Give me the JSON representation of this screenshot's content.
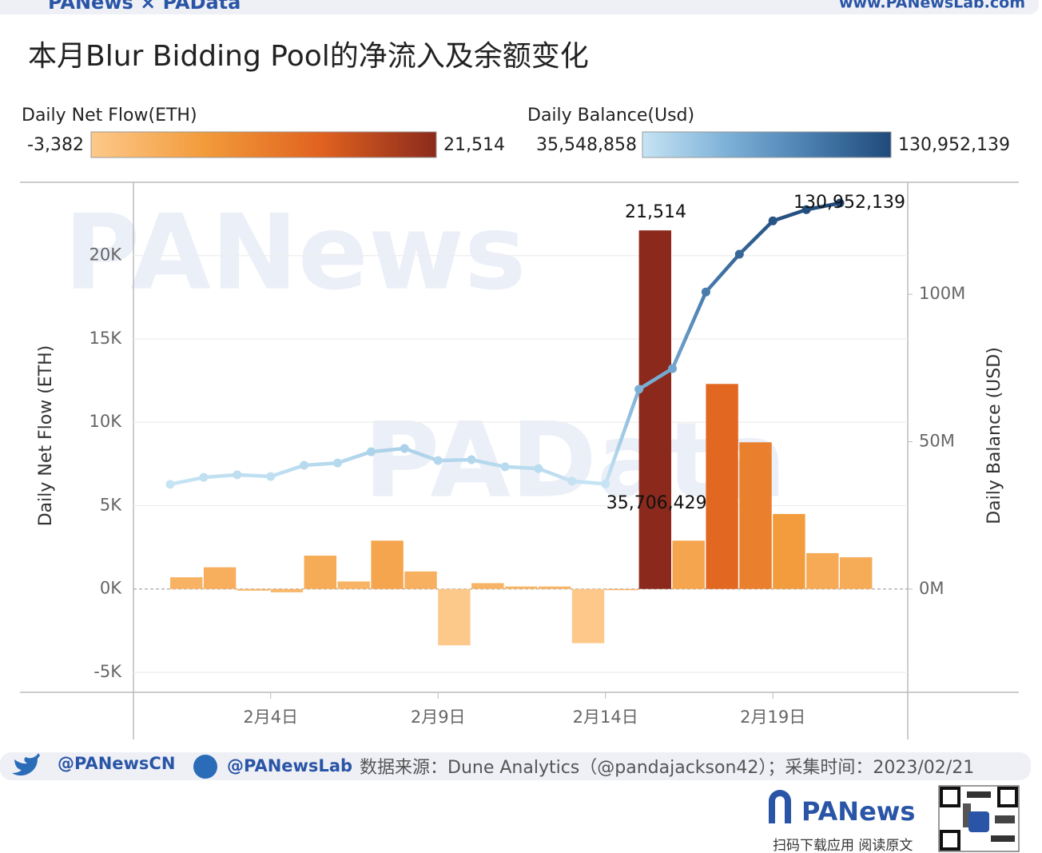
{
  "header": {
    "brand": "PANews × PAData",
    "url": "www.PANewsLab.com"
  },
  "watermarks": [
    "PANews",
    "PAData"
  ],
  "chart_data": {
    "type": "bar",
    "title": "本月Blur Bidding Pool的净流入及余额变化",
    "categories": [
      null,
      null,
      null,
      "2月4日",
      null,
      null,
      null,
      null,
      "2月9日",
      null,
      null,
      null,
      null,
      "2月14日",
      null,
      null,
      null,
      null,
      "2月19日",
      null,
      null
    ],
    "series": [
      {
        "name": "Daily Net Flow(ETH)",
        "type": "bar",
        "values": [
          700,
          1300,
          -100,
          -200,
          2000,
          450,
          2900,
          1050,
          -3382,
          350,
          150,
          150,
          -3250,
          -60,
          21514,
          2900,
          12300,
          8800,
          4500,
          2150,
          1900
        ],
        "value_labels": [
          null,
          null,
          null,
          null,
          null,
          null,
          null,
          null,
          null,
          null,
          null,
          null,
          null,
          null,
          "21,514",
          null,
          null,
          null,
          null,
          null,
          null
        ],
        "color_scale": {
          "colors": [
            "#fdc98a",
            "#f29a3a",
            "#e0621f",
            "#8b2a1c"
          ],
          "min": {
            "value": -3382,
            "label": "-3,382"
          },
          "max": {
            "value": 21514,
            "label": "21,514"
          }
        }
      },
      {
        "name": "Daily Balance(Usd)",
        "type": "line",
        "axis": "y2",
        "values": [
          35548858,
          37900000,
          38800000,
          38200000,
          42000000,
          42800000,
          46600000,
          47700000,
          43600000,
          43900000,
          41500000,
          40900000,
          36600000,
          35706429,
          67800000,
          74800000,
          100800000,
          113600000,
          124900000,
          128700000,
          130952139
        ],
        "value_labels": [
          null,
          null,
          null,
          null,
          null,
          null,
          null,
          null,
          null,
          null,
          null,
          null,
          null,
          "35,706,429",
          null,
          null,
          null,
          null,
          null,
          null,
          "130,952,139"
        ],
        "color_scale": {
          "colors": [
            "#c6e4f4",
            "#7fb2d8",
            "#4a7fb0",
            "#1f4a7a"
          ],
          "min": {
            "value": 35548858,
            "label": "35,548,858"
          },
          "max": {
            "value": 130952139,
            "label": "130,952,139"
          }
        }
      }
    ],
    "y_label": "Daily Net Flow (ETH)",
    "y2_label": "Daily Balance (USD)",
    "ylim": [
      -6200,
      24400
    ],
    "yticks": [
      {
        "value": -5000,
        "label": "-5K"
      },
      {
        "value": 0,
        "label": "0K"
      },
      {
        "value": 5000,
        "label": "5K"
      },
      {
        "value": 10000,
        "label": "10K"
      },
      {
        "value": 15000,
        "label": "15K"
      },
      {
        "value": 20000,
        "label": "20K"
      }
    ],
    "y2lim": [
      -35000000,
      138000000
    ],
    "y2ticks": [
      {
        "value": 0,
        "label": "0M"
      },
      {
        "value": 50000000,
        "label": "50M"
      },
      {
        "value": 100000000,
        "label": "100M"
      }
    ],
    "grid": true
  },
  "footer": {
    "twitter": "@PANewsCN",
    "facebook": "@PANewsLab",
    "source": "数据来源：Dune Analytics（@pandajackson42）；采集时间：2023/02/21",
    "logo": "PANews",
    "qr_caption": "扫码下载应用  阅读原文"
  }
}
